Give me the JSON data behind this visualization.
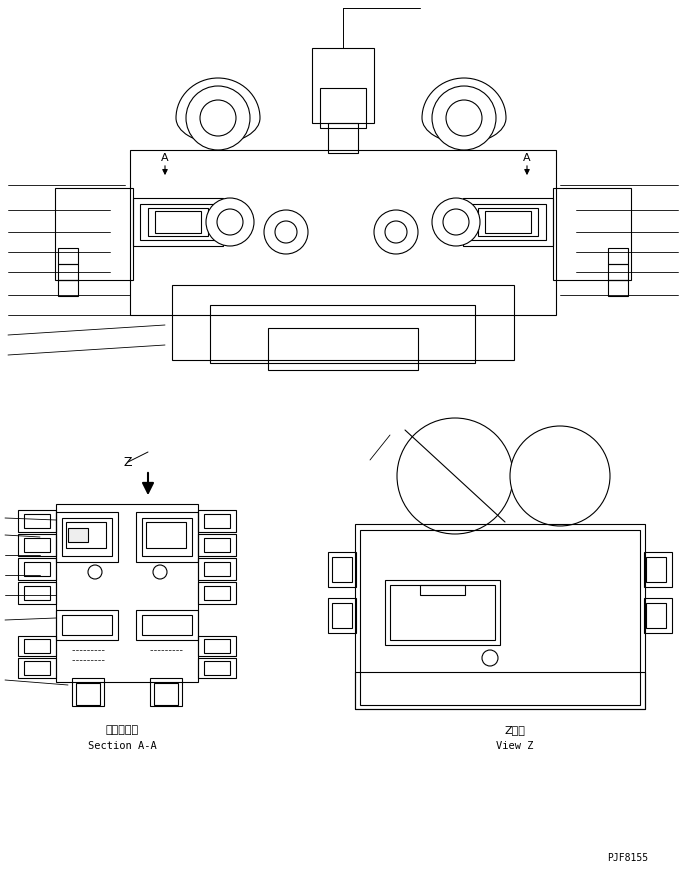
{
  "background_color": "#ffffff",
  "line_color": "#000000",
  "page_id": "PJF8155",
  "section_aa_label_jp": "断面Ａ－Ａ",
  "section_aa_label_en": "Section A-A",
  "view_z_label_jp": "Z　視",
  "view_z_label_en": "View Z",
  "figsize": [
    6.86,
    8.71
  ],
  "dpi": 100
}
